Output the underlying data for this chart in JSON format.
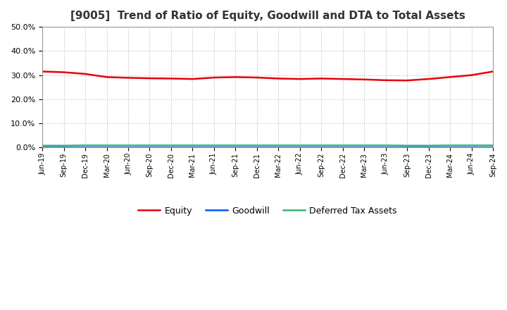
{
  "title": "[9005]  Trend of Ratio of Equity, Goodwill and DTA to Total Assets",
  "x_labels": [
    "Jun-19",
    "Sep-19",
    "Dec-19",
    "Mar-20",
    "Jun-20",
    "Sep-20",
    "Dec-20",
    "Mar-21",
    "Jun-21",
    "Sep-21",
    "Dec-21",
    "Mar-22",
    "Jun-22",
    "Sep-22",
    "Dec-22",
    "Mar-23",
    "Jun-23",
    "Sep-23",
    "Dec-23",
    "Mar-24",
    "Jun-24",
    "Sep-24"
  ],
  "equity": [
    0.315,
    0.312,
    0.305,
    0.292,
    0.289,
    0.287,
    0.286,
    0.284,
    0.29,
    0.292,
    0.29,
    0.286,
    0.284,
    0.286,
    0.284,
    0.282,
    0.279,
    0.278,
    0.284,
    0.292,
    0.3,
    0.315
  ],
  "goodwill": [
    0.0,
    0.0,
    0.0,
    0.0,
    0.0,
    0.0,
    0.0,
    0.0,
    0.0,
    0.0,
    0.0,
    0.0,
    0.0,
    0.0,
    0.0,
    0.0,
    0.0,
    0.0,
    0.0,
    0.0,
    0.0,
    0.0
  ],
  "dta": [
    0.008,
    0.008,
    0.009,
    0.009,
    0.009,
    0.009,
    0.009,
    0.009,
    0.009,
    0.009,
    0.009,
    0.009,
    0.009,
    0.009,
    0.009,
    0.009,
    0.009,
    0.008,
    0.008,
    0.009,
    0.009,
    0.009
  ],
  "equity_color": "#e8000a",
  "goodwill_color": "#0055ff",
  "dta_color": "#3cb371",
  "ylim": [
    0.0,
    0.5
  ],
  "yticks": [
    0.0,
    0.1,
    0.2,
    0.3,
    0.4,
    0.5
  ],
  "background_color": "#ffffff",
  "grid_color": "#bbbbbb",
  "title_fontsize": 11,
  "title_color": "#333333",
  "legend_labels": [
    "Equity",
    "Goodwill",
    "Deferred Tax Assets"
  ]
}
